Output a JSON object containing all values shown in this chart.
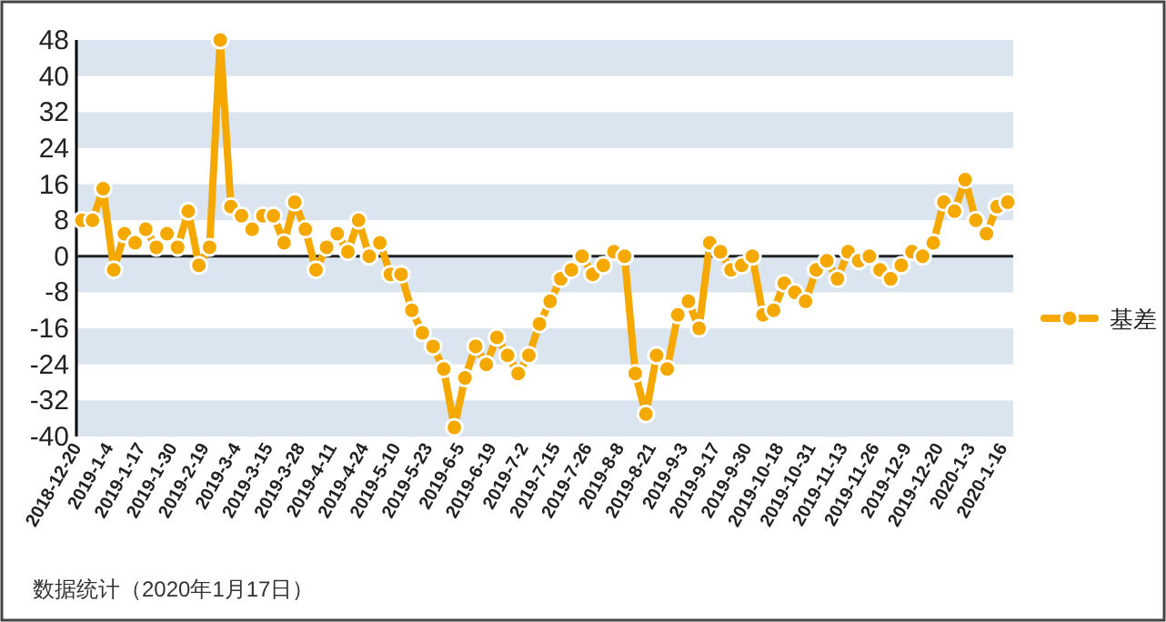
{
  "chart_data": {
    "type": "line",
    "categories": [
      "2018-12-20",
      null,
      null,
      "2019-1-4",
      null,
      null,
      "2019-1-17",
      null,
      null,
      "2019-1-30",
      null,
      null,
      "2019-2-19",
      null,
      null,
      "2019-3-4",
      null,
      null,
      "2019-3-15",
      null,
      null,
      "2019-3-28",
      null,
      null,
      "2019-4-11",
      null,
      null,
      "2019-4-24",
      null,
      null,
      "2019-5-10",
      null,
      null,
      "2019-5-23",
      null,
      null,
      "2019-6-5",
      null,
      null,
      "2019-6-19",
      null,
      null,
      "2019-7-2",
      null,
      null,
      "2019-7-15",
      null,
      null,
      "2019-7-26",
      null,
      null,
      "2019-8-8",
      null,
      null,
      "2019-8-21",
      null,
      null,
      "2019-9-3",
      null,
      null,
      "2019-9-17",
      null,
      null,
      "2019-9-30",
      null,
      null,
      "2019-10-18",
      null,
      null,
      "2019-10-31",
      null,
      null,
      "2019-11-13",
      null,
      null,
      "2019-11-26",
      null,
      null,
      "2019-12-9",
      null,
      null,
      "2019-12-20",
      null,
      null,
      "2020-1-3",
      null,
      null,
      "2020-1-16"
    ],
    "series": [
      {
        "name": "基差",
        "color": "#f5a800",
        "values": [
          8,
          8,
          15,
          -3,
          5,
          3,
          6,
          2,
          5,
          2,
          10,
          -2,
          2,
          48,
          11,
          9,
          6,
          9,
          9,
          3,
          12,
          6,
          -3,
          2,
          5,
          1,
          8,
          0,
          3,
          -4,
          -4,
          -12,
          -17,
          -20,
          -25,
          -38,
          -27,
          -20,
          -24,
          -18,
          -22,
          -26,
          -22,
          -15,
          -10,
          -5,
          -3,
          0,
          -4,
          -2,
          1,
          0,
          -26,
          -35,
          -22,
          -25,
          -13,
          -10,
          -16,
          3,
          1,
          -3,
          -2,
          0,
          -13,
          -12,
          -6,
          -8,
          -10,
          -3,
          -1,
          -5,
          1,
          -1,
          0,
          -3,
          -5,
          -2,
          1,
          0,
          3,
          12,
          10,
          17,
          8,
          5,
          11,
          12
        ]
      }
    ],
    "ylim": [
      -40,
      48
    ],
    "yticks": [
      -40,
      -32,
      -24,
      -16,
      -8,
      0,
      8,
      16,
      24,
      32,
      40,
      48
    ],
    "grid": "y",
    "legend": "right",
    "marker": "circle",
    "line_style": "solid",
    "annotations": [
      "数据统计（2020年1月17日）"
    ]
  }
}
